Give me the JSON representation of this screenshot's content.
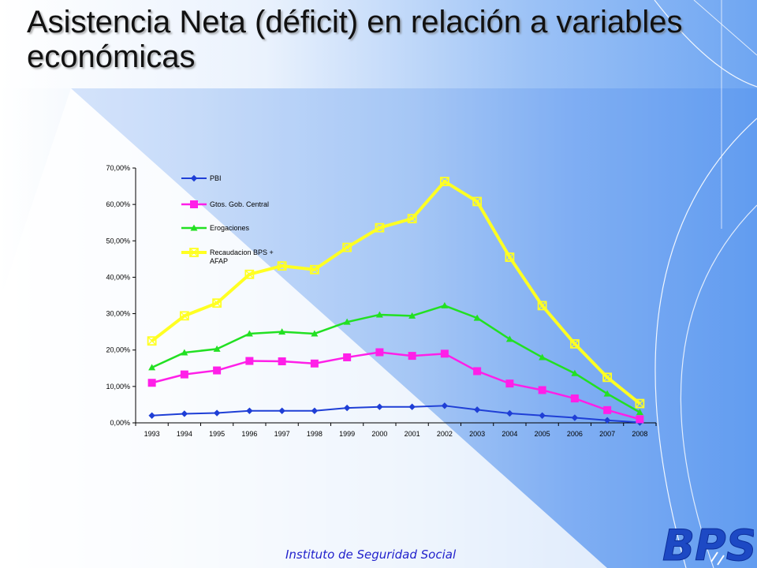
{
  "slide": {
    "title": "Asistencia Neta (déficit) en relación a variables económicas",
    "footer": "Instituto de Seguridad Social",
    "logo_text": "BPS"
  },
  "colors": {
    "pbi": "#1f3fd6",
    "gtos": "#ff1fe8",
    "erog": "#22e022",
    "recaud": "#ffff22",
    "accent_blue": "#2a5fd9"
  },
  "chart_data": {
    "type": "line",
    "title": "",
    "xlabel": "",
    "ylabel": "",
    "categories": [
      "1993",
      "1994",
      "1995",
      "1996",
      "1997",
      "1998",
      "1999",
      "2000",
      "2001",
      "2002",
      "2003",
      "2004",
      "2005",
      "2006",
      "2007",
      "2008"
    ],
    "ylim": [
      0,
      70
    ],
    "yticks": [
      "0,00%",
      "10,00%",
      "20,00%",
      "30,00%",
      "40,00%",
      "50,00%",
      "60,00%",
      "70,00%"
    ],
    "grid": false,
    "legend_position": "top-left",
    "series": [
      {
        "name": "PBI",
        "marker": "diamond",
        "color": "#1f3fd6",
        "values": [
          2.0,
          2.5,
          2.7,
          3.3,
          3.3,
          3.3,
          4.1,
          4.4,
          4.4,
          4.7,
          3.6,
          2.6,
          2.0,
          1.4,
          0.7,
          0.1
        ]
      },
      {
        "name": "Gtos. Gob. Central",
        "marker": "square",
        "color": "#ff1fe8",
        "values": [
          11.0,
          13.3,
          14.4,
          17.0,
          16.9,
          16.3,
          18.0,
          19.4,
          18.4,
          19.0,
          14.2,
          10.8,
          9.0,
          6.7,
          3.5,
          1.0
        ]
      },
      {
        "name": "Erogaciones",
        "marker": "triangle",
        "color": "#22e022",
        "values": [
          15.2,
          19.3,
          20.3,
          24.5,
          25.0,
          24.5,
          27.7,
          29.7,
          29.4,
          32.2,
          28.8,
          23.0,
          18.0,
          13.6,
          8.0,
          2.9
        ]
      },
      {
        "name": "Recaudacion BPS + AFAP",
        "legend_lines": [
          "Recaudacion BPS +",
          "AFAP"
        ],
        "marker": "x-square",
        "color": "#ffff22",
        "values": [
          22.5,
          29.4,
          32.9,
          40.8,
          43.1,
          42.1,
          48.2,
          53.6,
          56.1,
          66.3,
          60.8,
          45.5,
          32.2,
          21.7,
          12.5,
          5.3
        ]
      }
    ]
  }
}
